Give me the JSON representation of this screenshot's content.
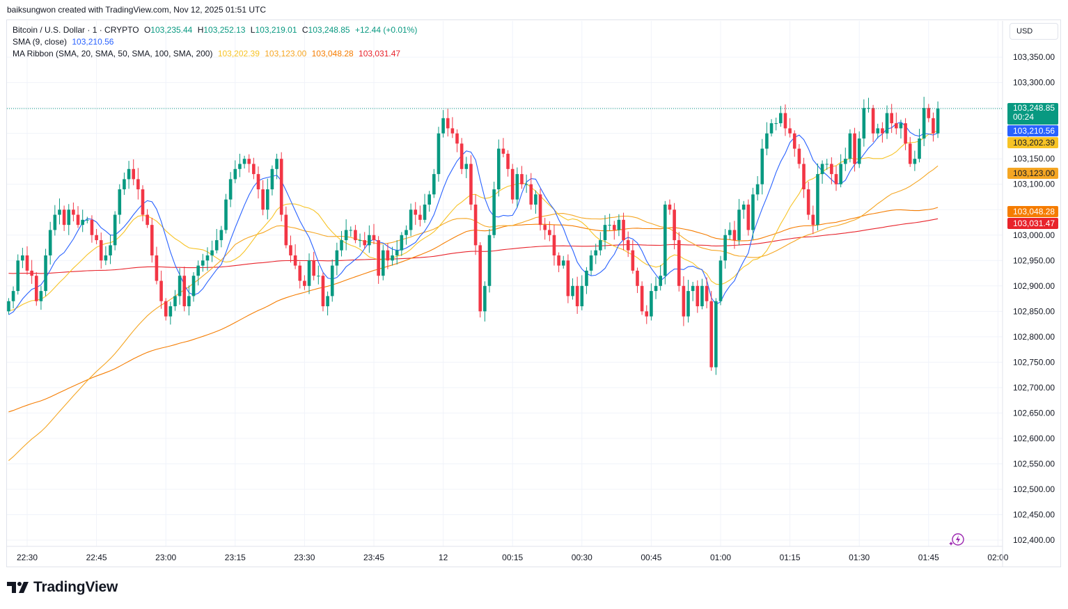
{
  "header": {
    "created_line": "baiksungwon created with TradingView.com, Nov 12, 2025 01:51 UTC"
  },
  "legend": {
    "symbol": "Bitcoin / U.S. Dollar · 1 · CRYPTO",
    "o_label": "O",
    "o_value": "103,235.44",
    "h_label": "H",
    "h_value": "103,252.13",
    "l_label": "L",
    "l_value": "103,219.01",
    "c_label": "C",
    "c_value": "103,248.85",
    "change": "+12.44 (+0.01%)",
    "sma_label": "SMA (9, close)",
    "sma_value": "103,210.56",
    "ribbon_label": "MA Ribbon (SMA, 20, SMA, 50, SMA, 100, SMA, 200)",
    "ribbon_values": [
      "103,202.39",
      "103,123.00",
      "103,048.28",
      "103,031.47"
    ]
  },
  "currency": "USD",
  "tags": {
    "last_price": "103,248.85",
    "countdown": "00:24",
    "sma9": "103,210.56",
    "ma20": "103,202.39",
    "ma50": "103,123.00",
    "ma100": "103,048.28",
    "ma200": "103,031.47"
  },
  "colors": {
    "up": "#089981",
    "down": "#f23645",
    "sma9": "#2962ff",
    "ma20": "#f7c325",
    "ma50": "#f5a623",
    "ma100": "#f57c00",
    "ma200": "#e8232b",
    "grid": "#f0f3fa",
    "text": "#131722"
  },
  "brand": {
    "name": "TradingView",
    "logo_icon": "tradingview-logo-icon"
  },
  "chart_data": {
    "type": "candlestick",
    "title": "Bitcoin / U.S. Dollar · 1 · CRYPTO",
    "interval": "1 minute",
    "ylim": [
      102380,
      103390
    ],
    "y_ticks": [
      102400,
      102450,
      102500,
      102550,
      102600,
      102650,
      102700,
      102750,
      102800,
      102850,
      102900,
      102950,
      103000,
      103050,
      103100,
      103150,
      103200,
      103250,
      103300,
      103350
    ],
    "y_tick_labels": [
      "102,400.00",
      "102,450.00",
      "102,500.00",
      "102,550.00",
      "102,600.00",
      "102,650.00",
      "102,700.00",
      "102,750.00",
      "102,800.00",
      "102,850.00",
      "102,900.00",
      "102,950.00",
      "103,000.00",
      "103,050.00",
      "103,100.00",
      "103,150.00",
      "103,200.00",
      "103,250.00",
      "103,300.00",
      "103,350.00"
    ],
    "x_tick_labels": [
      "22:30",
      "22:45",
      "23:00",
      "23:15",
      "23:30",
      "23:45",
      "12",
      "00:15",
      "00:30",
      "00:45",
      "01:00",
      "01:15",
      "01:30",
      "01:45",
      "02:00"
    ],
    "x_tick_minutes": [
      0,
      15,
      30,
      45,
      60,
      75,
      90,
      105,
      120,
      135,
      150,
      165,
      180,
      195,
      210
    ],
    "last_price": 103248.85,
    "candles_close": [
      102870,
      102890,
      102950,
      102960,
      102930,
      102920,
      102870,
      102890,
      102960,
      103010,
      103040,
      103050,
      103020,
      103050,
      103040,
      103020,
      103030,
      103030,
      103000,
      102990,
      102950,
      102960,
      102980,
      103040,
      103090,
      103110,
      103130,
      103110,
      103090,
      103040,
      103020,
      102960,
      102910,
      102870,
      102840,
      102860,
      102880,
      102920,
      102860,
      102880,
      102920,
      102940,
      102950,
      102960,
      102970,
      102990,
      103010,
      103070,
      103110,
      103130,
      103140,
      103150,
      103140,
      103120,
      103090,
      103050,
      103090,
      103130,
      103150,
      103040,
      102980,
      102960,
      102940,
      102910,
      102900,
      102950,
      102920,
      102920,
      102860,
      102880,
      102940,
      102970,
      102990,
      103010,
      103010,
      102990,
      102990,
      102980,
      103000,
      102990,
      102920,
      102970,
      102950,
      102960,
      102970,
      103000,
      103010,
      103050,
      103040,
      103030,
      103060,
      103080,
      103120,
      103200,
      103230,
      103210,
      103200,
      103180,
      103130,
      103140,
      103060,
      102980,
      102850,
      102900,
      103000,
      103090,
      103170,
      103160,
      103130,
      103070,
      103120,
      103100,
      103100,
      103060,
      103080,
      103020,
      103010,
      103000,
      102960,
      102940,
      102950,
      102880,
      102900,
      102860,
      102900,
      102930,
      102960,
      102970,
      102990,
      103020,
      103020,
      103010,
      103030,
      102990,
      102970,
      102930,
      102900,
      102850,
      102840,
      102890,
      102900,
      102920,
      103060,
      103050,
      102990,
      102900,
      102840,
      102890,
      102900,
      102860,
      102900,
      102870,
      102740,
      102870,
      102950,
      103000,
      103010,
      102990,
      103050,
      103060,
      103010,
      103080,
      103100,
      103170,
      103200,
      103220,
      103220,
      103240,
      103210,
      103200,
      103170,
      103140,
      103090,
      103040,
      103020,
      103120,
      103140,
      103140,
      103120,
      103100,
      103140,
      103150,
      103200,
      103140,
      103190,
      103250,
      103250,
      103200,
      103210,
      103200,
      103240,
      103220,
      103210,
      103220,
      103180,
      103140,
      103150,
      103190,
      103250,
      103230,
      103200,
      103248.85
    ],
    "series": [
      {
        "name": "SMA (9, close)",
        "last": 103210.56
      },
      {
        "name": "SMA 20",
        "last": 103202.39
      },
      {
        "name": "SMA 50",
        "last": 103123.0
      },
      {
        "name": "SMA 100",
        "last": 103048.28
      },
      {
        "name": "SMA 200",
        "last": 103031.47
      }
    ]
  }
}
